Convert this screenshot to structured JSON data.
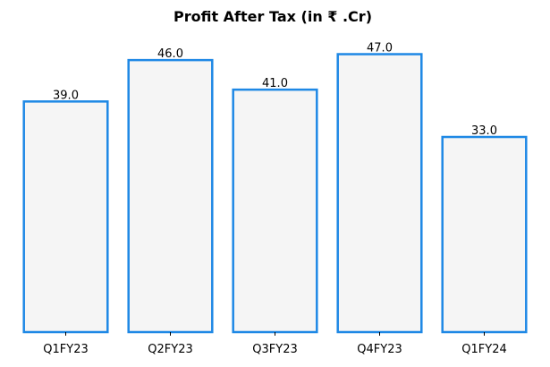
{
  "chart_data": {
    "type": "bar",
    "title": "Profit After Tax (in ₹ .Cr)",
    "categories": [
      "Q1FY23",
      "Q2FY23",
      "Q3FY23",
      "Q4FY23",
      "Q1FY24"
    ],
    "values": [
      39.0,
      46.0,
      41.0,
      47.0,
      33.0
    ],
    "data_labels": [
      "39.0",
      "46.0",
      "41.0",
      "47.0",
      "33.0"
    ],
    "xlabel": "",
    "ylabel": "",
    "ylim": [
      0,
      49.35
    ],
    "grid": false,
    "legend": "none",
    "colors": {
      "bar_fill": "#f5f5f5",
      "bar_edge": "#1e88e5",
      "text": "#000000",
      "axis": "#000000"
    }
  }
}
